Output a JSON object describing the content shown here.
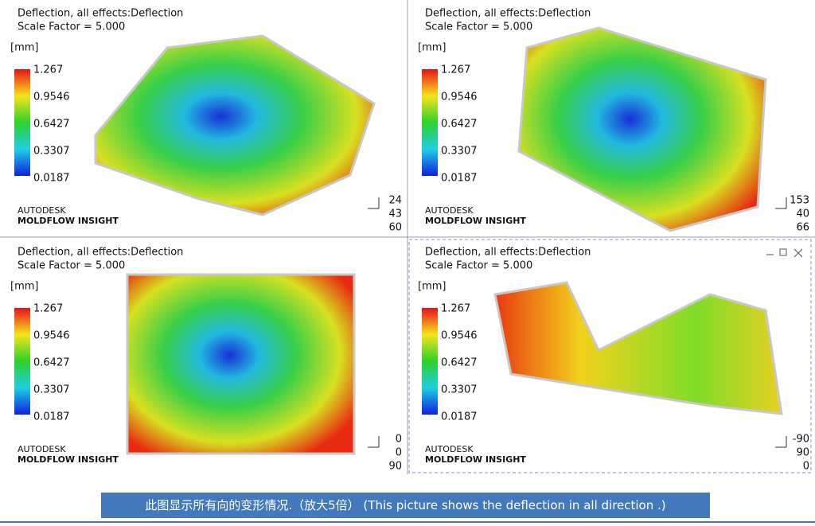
{
  "panels": [
    {
      "title": "Deflection, all effects:Deflection",
      "scale": "Scale Factor = 5.000",
      "unit": "[mm]",
      "legend": [
        "1.267",
        "0.9546",
        "0.6427",
        "0.3307",
        "0.0187"
      ],
      "logo": [
        "AUTODESK",
        "MOLDFLOW INSIGHT"
      ],
      "orientation": [
        "24",
        "43",
        "60"
      ]
    },
    {
      "title": "Deflection, all effects:Deflection",
      "scale": "Scale Factor = 5.000",
      "unit": "[mm]",
      "legend": [
        "1.267",
        "0.9546",
        "0.6427",
        "0.3307",
        "0.0187"
      ],
      "logo": [
        "AUTODESK",
        "MOLDFLOW INSIGHT"
      ],
      "orientation": [
        "153",
        "40",
        "66"
      ]
    },
    {
      "title": "Deflection, all effects:Deflection",
      "scale": "Scale Factor = 5.000",
      "unit": "[mm]",
      "legend": [
        "1.267",
        "0.9546",
        "0.6427",
        "0.3307",
        "0.0187"
      ],
      "logo": [
        "AUTODESK",
        "MOLDFLOW INSIGHT"
      ],
      "orientation": [
        "0",
        "0",
        "90"
      ]
    },
    {
      "title": "Deflection, all effects:Deflection",
      "scale": "Scale Factor = 5.000",
      "unit": "[mm]",
      "legend": [
        "1.267",
        "0.9546",
        "0.6427",
        "0.3307",
        "0.0187"
      ],
      "logo": [
        "AUTODESK",
        "MOLDFLOW INSIGHT"
      ],
      "orientation": [
        "-90",
        "90",
        "0"
      ]
    }
  ],
  "caption": "此图显示所有向的变形情况.（放大5倍） (This picture shows the deflection in all direction .)"
}
